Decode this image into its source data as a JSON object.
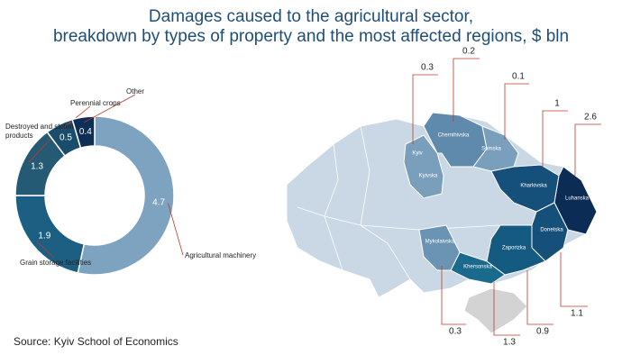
{
  "title": [
    "Damages caused to the agricultural sector,",
    "breakdown by types of property and the most affected regions, $ bln"
  ],
  "source": "Source: Kyiv School of Economics",
  "chart_data": [
    {
      "type": "donut",
      "categories": [
        "Agricultural machinery",
        "Grain storage facilities",
        "Destroyed and stolen products",
        "Perennial crops",
        "Other"
      ],
      "values": [
        4.7,
        1.9,
        1.3,
        0.5,
        0.4
      ],
      "colors": [
        "#7ea3c0",
        "#1d5f83",
        "#245a73",
        "#1a4c6c",
        "#0d2f55"
      ]
    },
    {
      "type": "map",
      "regions": [
        {
          "names": [
            "Kyiv",
            "Kyivska"
          ],
          "value": 0.3,
          "color": "#7a9fbc"
        },
        {
          "names": [
            "Chernihivska"
          ],
          "value": 0.2,
          "color": "#5f8aab"
        },
        {
          "names": [
            "Sumska"
          ],
          "value": 0.1,
          "color": "#7a9fbc"
        },
        {
          "names": [
            "Kharkivska"
          ],
          "value": 1.0,
          "color": "#15507a"
        },
        {
          "names": [
            "Luhanska"
          ],
          "value": 2.6,
          "color": "#0b2c55"
        },
        {
          "names": [
            "Donetska"
          ],
          "value": 1.1,
          "color": "#15507a"
        },
        {
          "names": [
            "Zaporizka"
          ],
          "value": 0.9,
          "color": "#155a80"
        },
        {
          "names": [
            "Khersonska"
          ],
          "value": 1.3,
          "color": "#1a6a8e"
        },
        {
          "names": [
            "Mykolaivska"
          ],
          "value": 0.3,
          "color": "#6b93b3"
        }
      ]
    }
  ]
}
